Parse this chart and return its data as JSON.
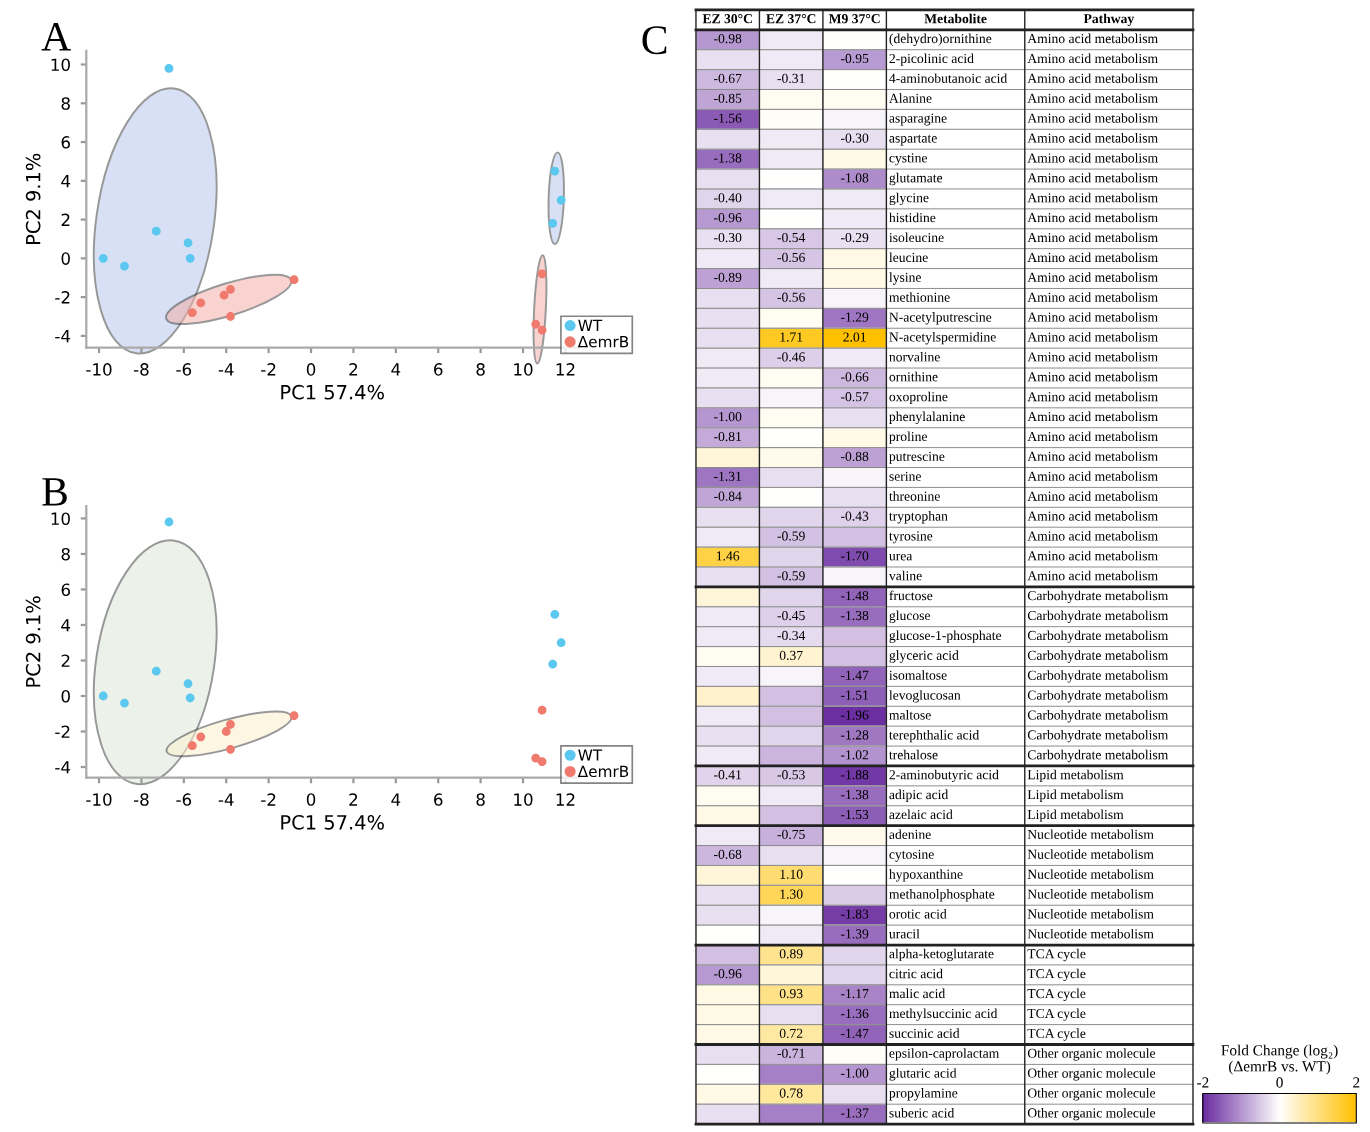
{
  "chart_data": [
    {
      "type": "scatter",
      "title": "A",
      "xlabel": "PC1 57.4%",
      "ylabel": "PC2 9.1%",
      "marker": "circle",
      "legend": "bottom right",
      "grid": false,
      "xlim": [
        -10.6,
        12.6
      ],
      "ylim": [
        -4.6,
        10.7
      ],
      "xticks": [
        -10,
        -8,
        -6,
        -4,
        -2,
        0,
        2,
        4,
        6,
        8,
        10,
        12
      ],
      "yticks": [
        -4,
        -2,
        0,
        2,
        4,
        6,
        8,
        10
      ],
      "series": [
        {
          "name": "WT",
          "color": "#5bc8f0",
          "x": [
            -6.7,
            -7.3,
            -5.8,
            -5.7,
            -9.8,
            -8.8,
            11.5,
            11.8,
            11.4
          ],
          "values": [
            9.8,
            1.4,
            0.8,
            0.0,
            0.0,
            -0.4,
            4.5,
            3.0,
            1.8
          ]
        },
        {
          "name": "ΔemrB",
          "color": "#f07a6e",
          "x": [
            -0.8,
            -3.8,
            -4.1,
            -3.8,
            -5.2,
            -5.6,
            10.9,
            10.6,
            10.9
          ],
          "values": [
            -1.1,
            -1.6,
            -1.9,
            -3.0,
            -2.3,
            -2.8,
            -0.8,
            -3.4,
            -3.7
          ]
        }
      ]
    },
    {
      "type": "scatter",
      "title": "B",
      "xlabel": "PC1 57.4%",
      "ylabel": "PC2 9.1%",
      "marker": "circle",
      "legend": "bottom right",
      "grid": false,
      "xlim": [
        -10.6,
        12.6
      ],
      "ylim": [
        -4.6,
        10.7
      ],
      "xticks": [
        -10,
        -8,
        -6,
        -4,
        -2,
        0,
        2,
        4,
        6,
        8,
        10,
        12
      ],
      "yticks": [
        -4,
        -2,
        0,
        2,
        4,
        6,
        8,
        10
      ],
      "series": [
        {
          "name": "WT",
          "color": "#5bc8f0",
          "x": [
            -6.7,
            -7.3,
            -5.8,
            -5.7,
            -9.8,
            -8.8,
            11.5,
            11.8,
            11.4
          ],
          "values": [
            9.8,
            1.4,
            0.7,
            -0.1,
            0.0,
            -0.4,
            4.6,
            3.0,
            1.8
          ]
        },
        {
          "name": "ΔemrB",
          "color": "#f07a6e",
          "x": [
            -0.8,
            -3.8,
            -4.0,
            -3.8,
            -5.2,
            -5.6,
            10.9,
            10.6,
            10.9
          ],
          "values": [
            -1.1,
            -1.6,
            -2.0,
            -3.0,
            -2.3,
            -2.8,
            -0.8,
            -3.5,
            -3.7
          ]
        }
      ]
    },
    {
      "type": "heatmap",
      "title": "C",
      "ylabel": "Metabolite",
      "y2label": "Pathway",
      "clabel": "Fold Change (log₂)\n(ΔemrB vs. WT)",
      "clim": [
        -2,
        2
      ],
      "cticks": [
        -2,
        0,
        2
      ],
      "categories": [
        "EZ 30°C",
        "EZ 37°C",
        "M9 37°C"
      ],
      "y_categories": [
        "(dehydro)ornithine",
        "2-picolinic acid",
        "4-aminobutanoic acid",
        "Alanine",
        "asparagine",
        "aspartate",
        "cystine",
        "glutamate",
        "glycine",
        "histidine",
        "isoleucine",
        "leucine",
        "lysine",
        "methionine",
        "N-acetylputrescine",
        "N-acetylspermidine",
        "norvaline",
        "ornithine",
        "oxoproline",
        "phenylalanine",
        "proline",
        "putrescine",
        "serine",
        "threonine",
        "tryptophan",
        "tyrosine",
        "urea",
        "valine",
        "fructose",
        "glucose",
        "glucose-1-phosphate",
        "glyceric acid",
        "isomaltose",
        "levoglucosan",
        "maltose",
        "terephthalic acid",
        "trehalose",
        "2-aminobutyric acid",
        "adipic acid",
        "azelaic acid",
        "adenine",
        "cytosine",
        "hypoxanthine",
        "methanolphosphate",
        "orotic acid",
        "uracil",
        "alpha-ketoglutarate",
        "citric acid",
        "malic acid",
        "methylsuccinic acid",
        "succinic acid",
        "epsilon-caprolactam",
        "glutaric acid",
        "propylamine",
        "suberic acid"
      ],
      "y2_categories": [
        "Amino acid metabolism",
        "Amino acid metabolism",
        "Amino acid metabolism",
        "Amino acid metabolism",
        "Amino acid metabolism",
        "Amino acid metabolism",
        "Amino acid metabolism",
        "Amino acid metabolism",
        "Amino acid metabolism",
        "Amino acid metabolism",
        "Amino acid metabolism",
        "Amino acid metabolism",
        "Amino acid metabolism",
        "Amino acid metabolism",
        "Amino acid metabolism",
        "Amino acid metabolism",
        "Amino acid metabolism",
        "Amino acid metabolism",
        "Amino acid metabolism",
        "Amino acid metabolism",
        "Amino acid metabolism",
        "Amino acid metabolism",
        "Amino acid metabolism",
        "Amino acid metabolism",
        "Amino acid metabolism",
        "Amino acid metabolism",
        "Amino acid metabolism",
        "Amino acid metabolism",
        "Carbohydrate metabolism",
        "Carbohydrate metabolism",
        "Carbohydrate metabolism",
        "Carbohydrate metabolism",
        "Carbohydrate metabolism",
        "Carbohydrate metabolism",
        "Carbohydrate metabolism",
        "Carbohydrate metabolism",
        "Carbohydrate metabolism",
        "Lipid metabolism",
        "Lipid metabolism",
        "Lipid metabolism",
        "Nucleotide metabolism",
        "Nucleotide metabolism",
        "Nucleotide metabolism",
        "Nucleotide metabolism",
        "Nucleotide metabolism",
        "Nucleotide metabolism",
        "TCA cycle",
        "TCA cycle",
        "TCA cycle",
        "TCA cycle",
        "TCA cycle",
        "Other organic molecule",
        "Other organic molecule",
        "Other organic molecule",
        "Other organic molecule"
      ],
      "cells": [
        [
          -0.98,
          -0.2,
          0.0
        ],
        [
          -0.3,
          -0.2,
          -0.95
        ],
        [
          -0.67,
          -0.31,
          0.0
        ],
        [
          -0.85,
          0.1,
          0.1
        ],
        [
          -1.56,
          0.05,
          -0.1
        ],
        [
          -0.3,
          -0.2,
          -0.3
        ],
        [
          -1.38,
          -0.2,
          0.2
        ],
        [
          -0.3,
          0.0,
          -1.08
        ],
        [
          -0.4,
          -0.2,
          -0.2
        ],
        [
          -0.96,
          0.0,
          -0.2
        ],
        [
          -0.3,
          -0.54,
          -0.29
        ],
        [
          -0.2,
          -0.56,
          0.2
        ],
        [
          -0.89,
          -0.2,
          0.2
        ],
        [
          -0.3,
          -0.56,
          -0.1
        ],
        [
          -0.3,
          0.1,
          -1.29
        ],
        [
          -0.3,
          1.71,
          2.01
        ],
        [
          -0.2,
          -0.46,
          -0.2
        ],
        [
          -0.2,
          0.1,
          -0.66
        ],
        [
          -0.3,
          -0.1,
          -0.57
        ],
        [
          -1.0,
          0.1,
          -0.3
        ],
        [
          -0.81,
          0.0,
          0.2
        ],
        [
          0.3,
          0.15,
          -0.88
        ],
        [
          -1.31,
          -0.3,
          -0.1
        ],
        [
          -0.84,
          0.0,
          -0.3
        ],
        [
          -0.3,
          -0.4,
          -0.43
        ],
        [
          -0.2,
          -0.59,
          -0.6
        ],
        [
          1.46,
          -0.4,
          -1.7
        ],
        [
          -0.3,
          -0.59,
          -0.1
        ],
        [
          0.3,
          -0.4,
          -1.48
        ],
        [
          -0.2,
          -0.45,
          -1.38
        ],
        [
          -0.2,
          -0.34,
          -0.6
        ],
        [
          0.1,
          0.37,
          -0.6
        ],
        [
          -0.2,
          -0.1,
          -1.47
        ],
        [
          0.4,
          -0.6,
          -1.51
        ],
        [
          -0.2,
          -0.6,
          -1.96
        ],
        [
          -0.3,
          -0.4,
          -1.28
        ],
        [
          -0.2,
          -0.7,
          -1.02
        ],
        [
          -0.41,
          -0.53,
          -1.88
        ],
        [
          0.1,
          -0.2,
          -1.38
        ],
        [
          0.2,
          -0.6,
          -1.53
        ],
        [
          -0.2,
          -0.75,
          0.15
        ],
        [
          -0.68,
          -0.3,
          -0.1
        ],
        [
          0.3,
          1.1,
          0.0
        ],
        [
          -0.3,
          1.3,
          -0.5
        ],
        [
          -0.3,
          -0.1,
          -1.83
        ],
        [
          0.0,
          -0.2,
          -1.39
        ],
        [
          -0.6,
          0.89,
          -0.4
        ],
        [
          -0.96,
          0.3,
          -0.4
        ],
        [
          0.2,
          0.93,
          -1.17
        ],
        [
          0.2,
          -0.3,
          -1.36
        ],
        [
          0.2,
          0.72,
          -1.47
        ],
        [
          -0.3,
          -0.71,
          0.05
        ],
        [
          0.0,
          -1.2,
          -1.0
        ],
        [
          0.2,
          0.78,
          -0.3
        ],
        [
          -0.3,
          -1.2,
          -1.37
        ]
      ],
      "cell_labels": [
        [
          "-0.98",
          null,
          null
        ],
        [
          null,
          null,
          "-0.95"
        ],
        [
          "-0.67",
          "-0.31",
          null
        ],
        [
          "-0.85",
          null,
          null
        ],
        [
          "-1.56",
          null,
          null
        ],
        [
          null,
          null,
          "-0.30"
        ],
        [
          "-1.38",
          null,
          null
        ],
        [
          null,
          null,
          "-1.08"
        ],
        [
          "-0.40",
          null,
          null
        ],
        [
          "-0.96",
          null,
          null
        ],
        [
          "-0.30",
          "-0.54",
          "-0.29"
        ],
        [
          null,
          "-0.56",
          null
        ],
        [
          "-0.89",
          null,
          null
        ],
        [
          null,
          "-0.56",
          null
        ],
        [
          null,
          null,
          "-1.29"
        ],
        [
          null,
          "1.71",
          "2.01"
        ],
        [
          null,
          "-0.46",
          null
        ],
        [
          null,
          null,
          "-0.66"
        ],
        [
          null,
          null,
          "-0.57"
        ],
        [
          "-1.00",
          null,
          null
        ],
        [
          "-0.81",
          null,
          null
        ],
        [
          null,
          null,
          "-0.88"
        ],
        [
          "-1.31",
          null,
          null
        ],
        [
          "-0.84",
          null,
          null
        ],
        [
          null,
          null,
          "-0.43"
        ],
        [
          null,
          "-0.59",
          null
        ],
        [
          "1.46",
          null,
          "-1.70"
        ],
        [
          null,
          "-0.59",
          null
        ],
        [
          null,
          null,
          "-1.48"
        ],
        [
          null,
          "-0.45",
          "-1.38"
        ],
        [
          null,
          "-0.34",
          null
        ],
        [
          null,
          "0.37",
          null
        ],
        [
          null,
          null,
          "-1.47"
        ],
        [
          null,
          null,
          "-1.51"
        ],
        [
          null,
          null,
          "-1.96"
        ],
        [
          null,
          null,
          "-1.28"
        ],
        [
          null,
          null,
          "-1.02"
        ],
        [
          "-0.41",
          "-0.53",
          "-1.88"
        ],
        [
          null,
          null,
          "-1.38"
        ],
        [
          null,
          null,
          "-1.53"
        ],
        [
          null,
          "-0.75",
          null
        ],
        [
          "-0.68",
          null,
          null
        ],
        [
          null,
          "1.10",
          null
        ],
        [
          null,
          "1.30",
          null
        ],
        [
          null,
          null,
          "-1.83"
        ],
        [
          null,
          null,
          "-1.39"
        ],
        [
          null,
          "0.89",
          null
        ],
        [
          "-0.96",
          null,
          null
        ],
        [
          null,
          "0.93",
          "-1.17"
        ],
        [
          null,
          null,
          "-1.36"
        ],
        [
          null,
          "0.72",
          "-1.47"
        ],
        [
          null,
          "-0.71",
          null
        ],
        [
          null,
          null,
          "-1.00"
        ],
        [
          null,
          "0.78",
          null
        ],
        [
          null,
          null,
          "-1.37"
        ]
      ]
    }
  ]
}
